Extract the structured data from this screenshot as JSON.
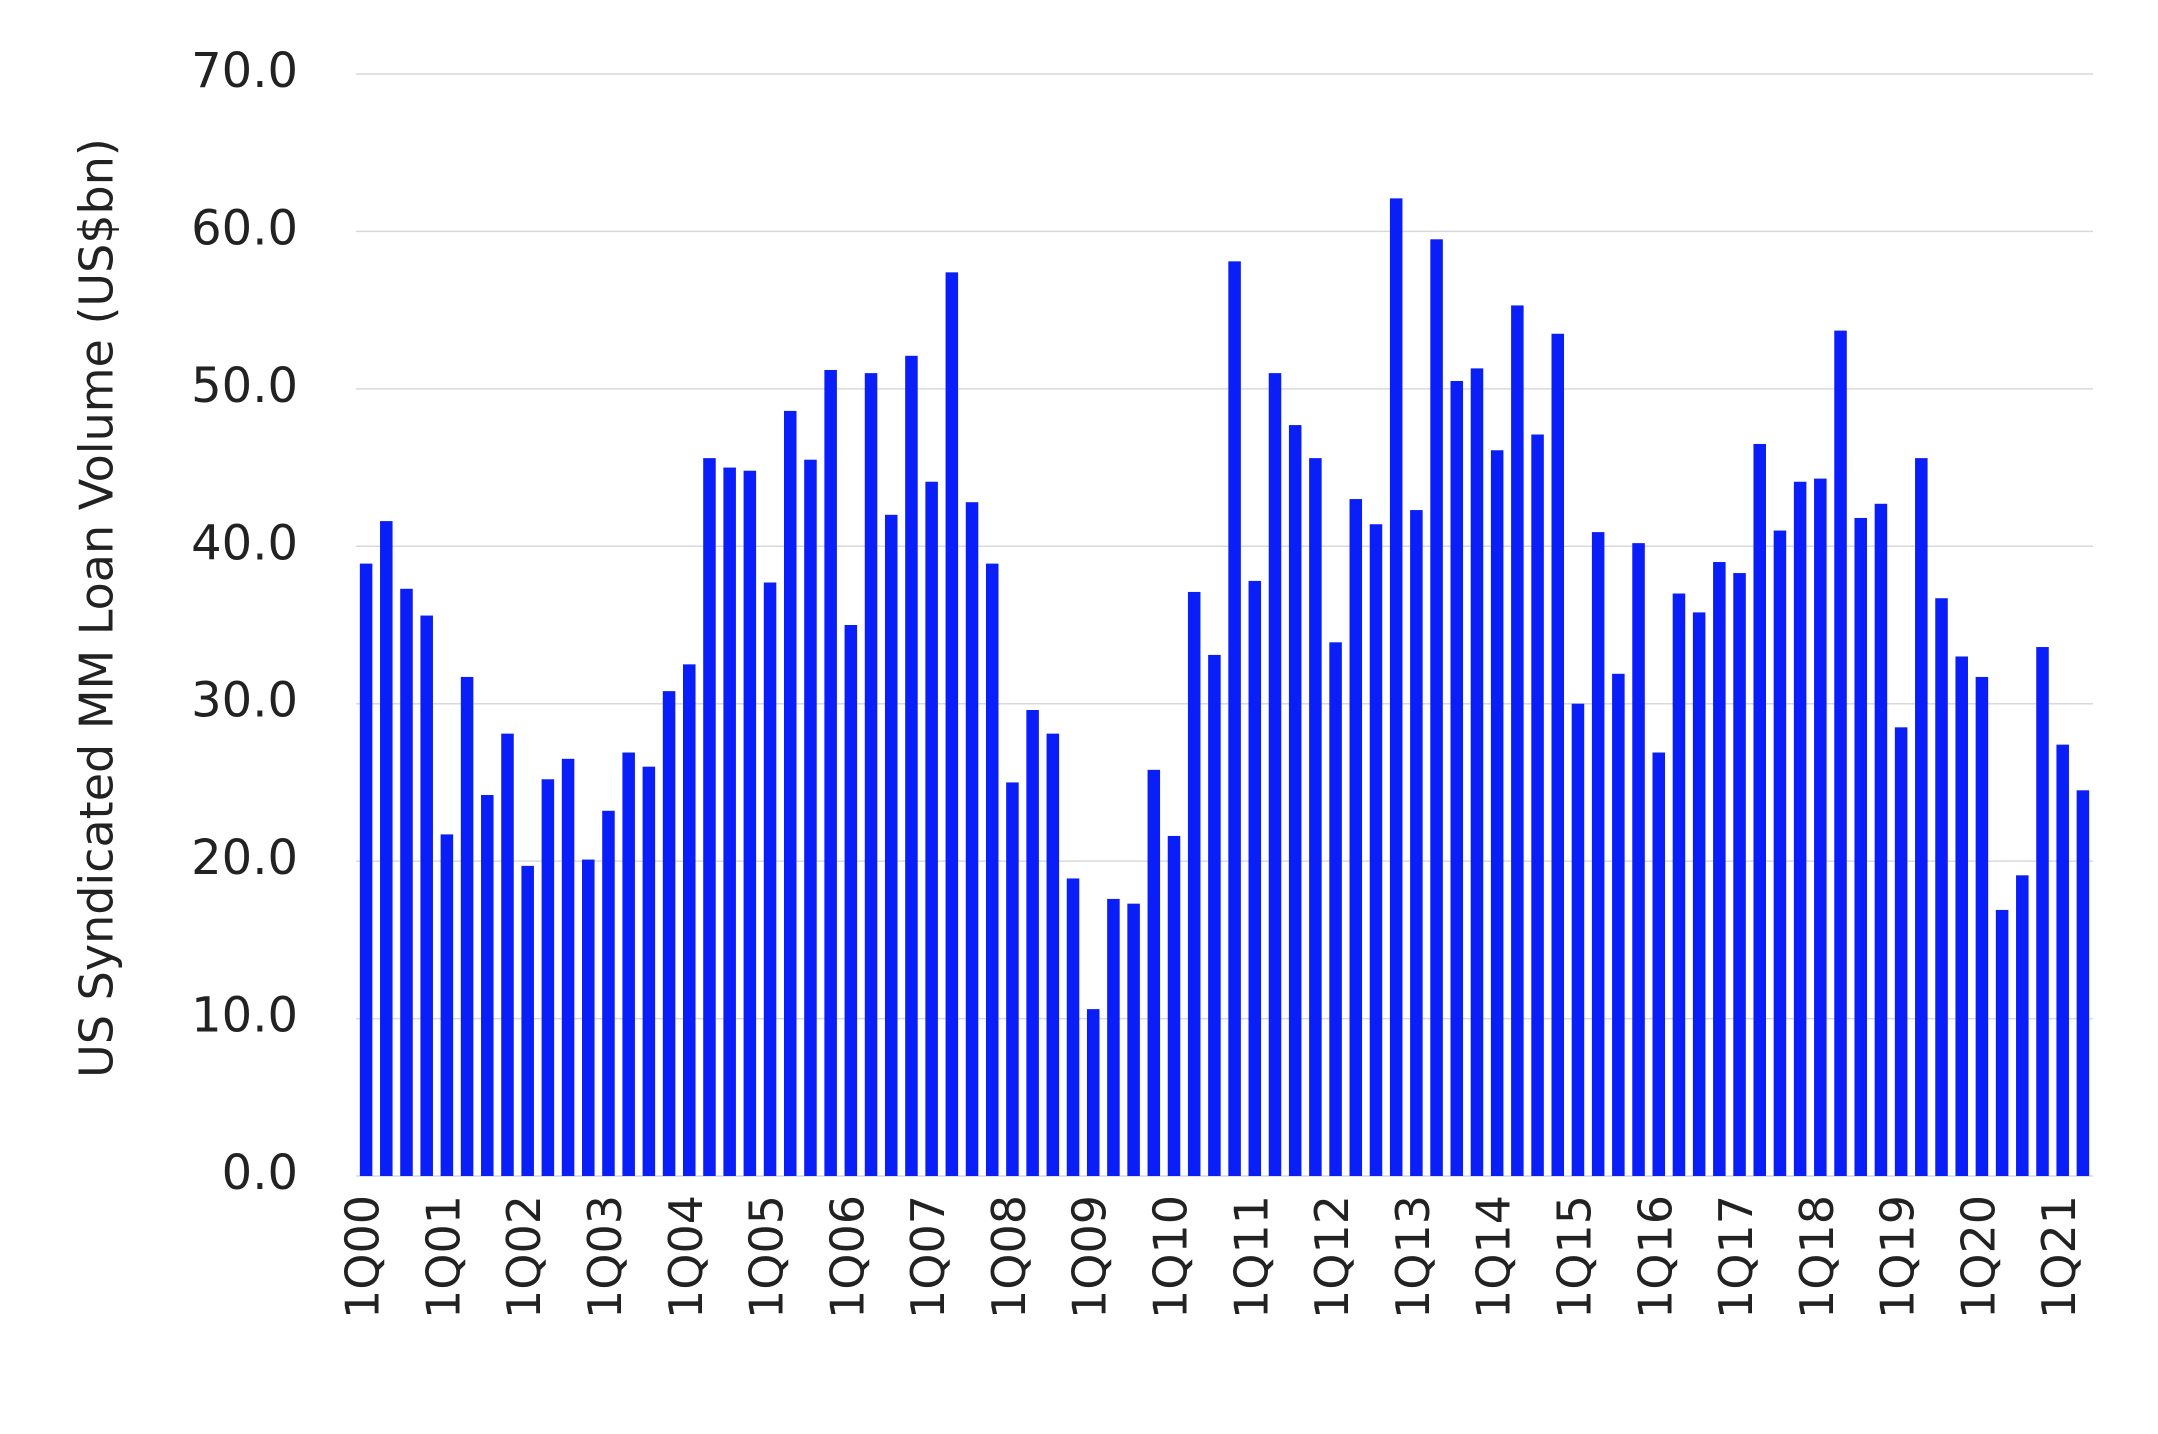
{
  "chart_data": {
    "type": "bar",
    "ylabel": "US Syndicated MM Loan Volume (US$bn)",
    "categories": [
      "1Q00",
      null,
      null,
      null,
      "1Q01",
      null,
      null,
      null,
      "1Q02",
      null,
      null,
      null,
      "1Q03",
      null,
      null,
      null,
      "1Q04",
      null,
      null,
      null,
      "1Q05",
      null,
      null,
      null,
      "1Q06",
      null,
      null,
      null,
      "1Q07",
      null,
      null,
      null,
      "1Q08",
      null,
      null,
      null,
      "1Q09",
      null,
      null,
      null,
      "1Q10",
      null,
      null,
      null,
      "1Q11",
      null,
      null,
      null,
      "1Q12",
      null,
      null,
      null,
      "1Q13",
      null,
      null,
      null,
      "1Q14",
      null,
      null,
      null,
      "1Q15",
      null,
      null,
      null,
      "1Q16",
      null,
      null,
      null,
      "1Q17",
      null,
      null,
      null,
      "1Q18",
      null,
      null,
      null,
      "1Q19",
      null,
      null,
      null,
      "1Q20",
      null,
      null,
      null,
      "1Q21",
      null
    ],
    "values": [
      38.9,
      41.6,
      37.3,
      35.6,
      21.7,
      31.7,
      24.2,
      28.1,
      19.7,
      25.2,
      26.5,
      20.1,
      23.2,
      26.9,
      26.0,
      30.8,
      32.5,
      45.6,
      45.0,
      44.8,
      37.7,
      48.6,
      45.5,
      51.2,
      35.0,
      51.0,
      42.0,
      52.1,
      44.1,
      57.4,
      42.8,
      38.9,
      25.0,
      29.6,
      28.1,
      18.9,
      10.6,
      17.6,
      17.3,
      25.8,
      21.6,
      37.1,
      33.1,
      58.1,
      37.8,
      51.0,
      47.7,
      45.6,
      33.9,
      43.0,
      41.4,
      62.1,
      42.3,
      59.5,
      50.5,
      51.3,
      46.1,
      55.3,
      47.1,
      53.5,
      30.0,
      40.9,
      31.9,
      40.2,
      26.9,
      37.0,
      35.8,
      39.0,
      38.3,
      46.5,
      41.0,
      44.1,
      44.3,
      53.7,
      41.8,
      42.7,
      28.5,
      45.6,
      36.7,
      33.0,
      31.7,
      16.9,
      19.1,
      33.6,
      27.4,
      24.5
    ],
    "color": "#0a1ef8",
    "ylim": [
      0,
      70
    ],
    "yticks": [
      {
        "value": 0,
        "label": "0.0"
      },
      {
        "value": 10,
        "label": "10.0"
      },
      {
        "value": 20,
        "label": "20.0"
      },
      {
        "value": 30,
        "label": "30.0"
      },
      {
        "value": 40,
        "label": "40.0"
      },
      {
        "value": 50,
        "label": "50.0"
      },
      {
        "value": 60,
        "label": "60.0"
      },
      {
        "value": 70,
        "label": "70.0"
      }
    ],
    "grid": true
  }
}
